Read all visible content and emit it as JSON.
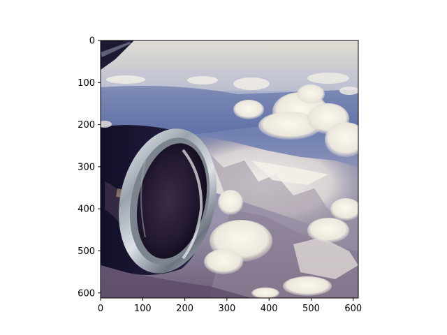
{
  "image": {
    "description_icon": "airplane-window-engine-over-mountains",
    "colors": {
      "sky_top": "#d9d6cf",
      "sky_mid": "#8e9ec4",
      "haze": "#b9bfd6",
      "cloud": "#f1eee6",
      "mountain_snow": "#e6e1dc",
      "mountain_shadow": "#7f7890",
      "engine_dark": "#1b1736",
      "engine_chrome": "#b9c0c8",
      "engine_inner": "#2a1f35",
      "ground_purple": "#5c4a66"
    }
  },
  "axes": {
    "x_ticks": [
      "0",
      "100",
      "200",
      "300",
      "400",
      "500",
      "600"
    ],
    "y_ticks": [
      "0",
      "100",
      "200",
      "300",
      "400",
      "500",
      "600"
    ],
    "xlim": [
      0,
      612
    ],
    "ylim": [
      612,
      0
    ]
  }
}
